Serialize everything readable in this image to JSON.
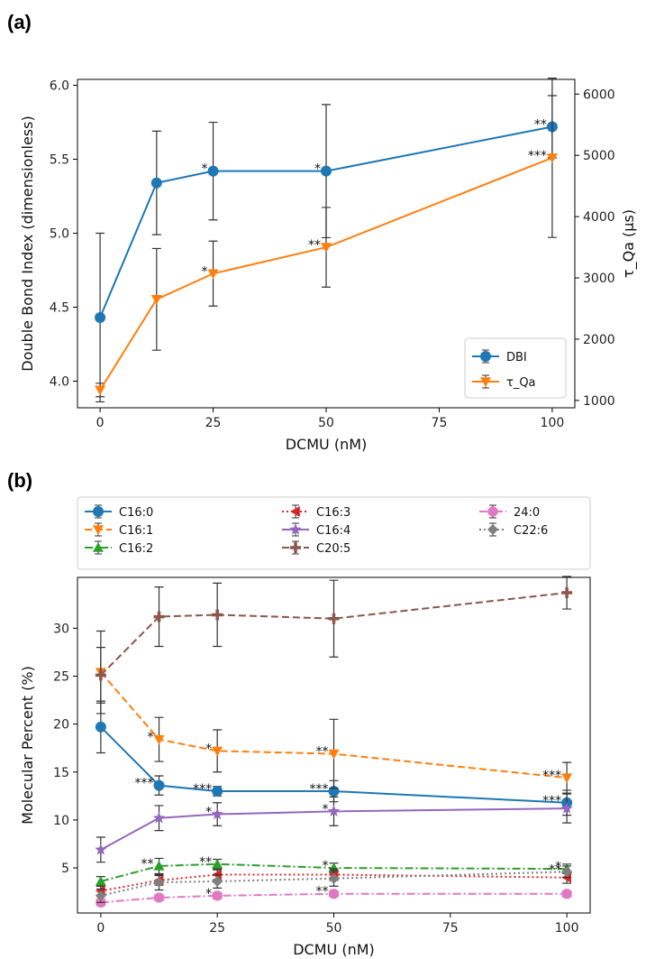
{
  "figure": {
    "panel_a_label": "(a)",
    "panel_b_label": "(b)"
  },
  "chart_data": [
    {
      "id": "a",
      "type": "line",
      "xlabel": "DCMU (nM)",
      "ylabel": "Double Bond Index (dimensionless)",
      "y2label": "τ_Qa (μs)",
      "xlim": [
        -5,
        105
      ],
      "ylim": [
        3.82,
        6.04
      ],
      "y2lim": [
        880,
        6240
      ],
      "xticks": [
        "0",
        "25",
        "50",
        "75",
        "100"
      ],
      "yticks": [
        "4.0",
        "4.5",
        "5.0",
        "5.5",
        "6.0"
      ],
      "y2ticks": [
        "1000",
        "2000",
        "3000",
        "4000",
        "5000",
        "6000"
      ],
      "grid": false,
      "legend_position": "lower-right",
      "series": [
        {
          "name": "DBI",
          "axis": "left",
          "color": "#1f77b4",
          "marker": "circle",
          "linestyle": "solid",
          "x": [
            0,
            12.5,
            25,
            50,
            100
          ],
          "y": [
            4.43,
            5.34,
            5.42,
            5.42,
            5.72
          ],
          "err": [
            0.57,
            0.35,
            0.33,
            0.45,
            0.21
          ],
          "annotations": [
            "",
            "",
            "*",
            "*",
            "**"
          ]
        },
        {
          "name": "τ_Qa",
          "axis": "right",
          "color": "#ff7f0e",
          "marker": "triangle-down",
          "linestyle": "solid",
          "x": [
            0,
            12.5,
            25,
            50,
            100
          ],
          "y": [
            1170,
            2650,
            3070,
            3500,
            4960
          ],
          "err": [
            110,
            830,
            530,
            650,
            1300
          ],
          "annotations": [
            "",
            "",
            "*",
            "**",
            "***"
          ]
        }
      ]
    },
    {
      "id": "b",
      "type": "line",
      "xlabel": "DCMU (nM)",
      "ylabel": "Molecular Percent (%)",
      "xlim": [
        -5,
        105
      ],
      "ylim": [
        0.3,
        35.3
      ],
      "xticks": [
        "0",
        "25",
        "50",
        "75",
        "100"
      ],
      "yticks": [
        "5",
        "10",
        "15",
        "20",
        "25",
        "30"
      ],
      "grid": false,
      "legend_position": "top-outside",
      "series": [
        {
          "name": "C16:0",
          "color": "#1f77b4",
          "marker": "circle",
          "linestyle": "solid",
          "x": [
            0,
            12.5,
            25,
            50,
            100
          ],
          "y": [
            19.7,
            13.6,
            13.0,
            13.0,
            11.8
          ],
          "err": [
            2.7,
            1.0,
            0.5,
            1.1,
            1.3
          ],
          "annotations": [
            "",
            "***",
            "***",
            "***",
            "***"
          ]
        },
        {
          "name": "C16:1",
          "color": "#ff7f0e",
          "marker": "triangle-down",
          "linestyle": "dashed",
          "x": [
            0,
            12.5,
            25,
            50,
            100
          ],
          "y": [
            25.4,
            18.4,
            17.2,
            16.9,
            14.4
          ],
          "err": [
            4.3,
            2.3,
            2.2,
            3.6,
            1.6
          ],
          "annotations": [
            "",
            "*",
            "*",
            "**",
            "***"
          ]
        },
        {
          "name": "C16:2",
          "color": "#2ca02c",
          "marker": "triangle-up",
          "linestyle": "dashdot",
          "x": [
            0,
            12.5,
            25,
            50,
            100
          ],
          "y": [
            3.6,
            5.2,
            5.4,
            5.0,
            4.9
          ],
          "err": [
            0.5,
            0.8,
            0.5,
            0.5,
            0.5
          ],
          "annotations": [
            "",
            "**",
            "**",
            "*",
            "*"
          ]
        },
        {
          "name": "C16:3",
          "color": "#d62728",
          "marker": "triangle-left",
          "linestyle": "dotted",
          "x": [
            0,
            12.5,
            25,
            50,
            100
          ],
          "y": [
            2.6,
            3.7,
            4.3,
            4.3,
            4.0
          ],
          "err": [
            0.5,
            0.5,
            0.5,
            0.6,
            0.6
          ],
          "annotations": [
            "",
            "",
            "",
            "",
            ""
          ]
        },
        {
          "name": "C16:4",
          "color": "#9467bd",
          "marker": "star",
          "linestyle": "solid",
          "x": [
            0,
            12.5,
            25,
            50,
            100
          ],
          "y": [
            6.9,
            10.2,
            10.6,
            10.9,
            11.2
          ],
          "err": [
            1.3,
            1.3,
            1.2,
            1.5,
            1.5
          ],
          "annotations": [
            "",
            "",
            "*",
            "*",
            ""
          ]
        },
        {
          "name": "C20:5",
          "color": "#8c564b",
          "marker": "plus",
          "linestyle": "dashed",
          "x": [
            0,
            12.5,
            25,
            50,
            100
          ],
          "y": [
            25.1,
            31.2,
            31.4,
            31.0,
            33.7
          ],
          "err": [
            2.9,
            3.1,
            3.3,
            4.0,
            1.7
          ],
          "annotations": [
            "",
            "",
            "",
            "",
            ""
          ]
        },
        {
          "name": "24:0",
          "color": "#e377c2",
          "marker": "octagon",
          "linestyle": "dashdot",
          "x": [
            0,
            12.5,
            25,
            50,
            100
          ],
          "y": [
            1.4,
            1.9,
            2.1,
            2.3,
            2.3
          ],
          "err": [
            0.3,
            0.3,
            0.3,
            0.3,
            0.3
          ],
          "annotations": [
            "",
            "",
            "*",
            "**",
            ""
          ]
        },
        {
          "name": "C22:6",
          "color": "#7f7f7f",
          "marker": "diamond",
          "linestyle": "dotted",
          "x": [
            0,
            12.5,
            25,
            50,
            100
          ],
          "y": [
            2.1,
            3.5,
            3.6,
            3.9,
            4.6
          ],
          "err": [
            0.7,
            0.8,
            0.7,
            0.8,
            0.6
          ],
          "annotations": [
            "",
            "",
            "",
            "",
            "**"
          ]
        }
      ]
    }
  ]
}
